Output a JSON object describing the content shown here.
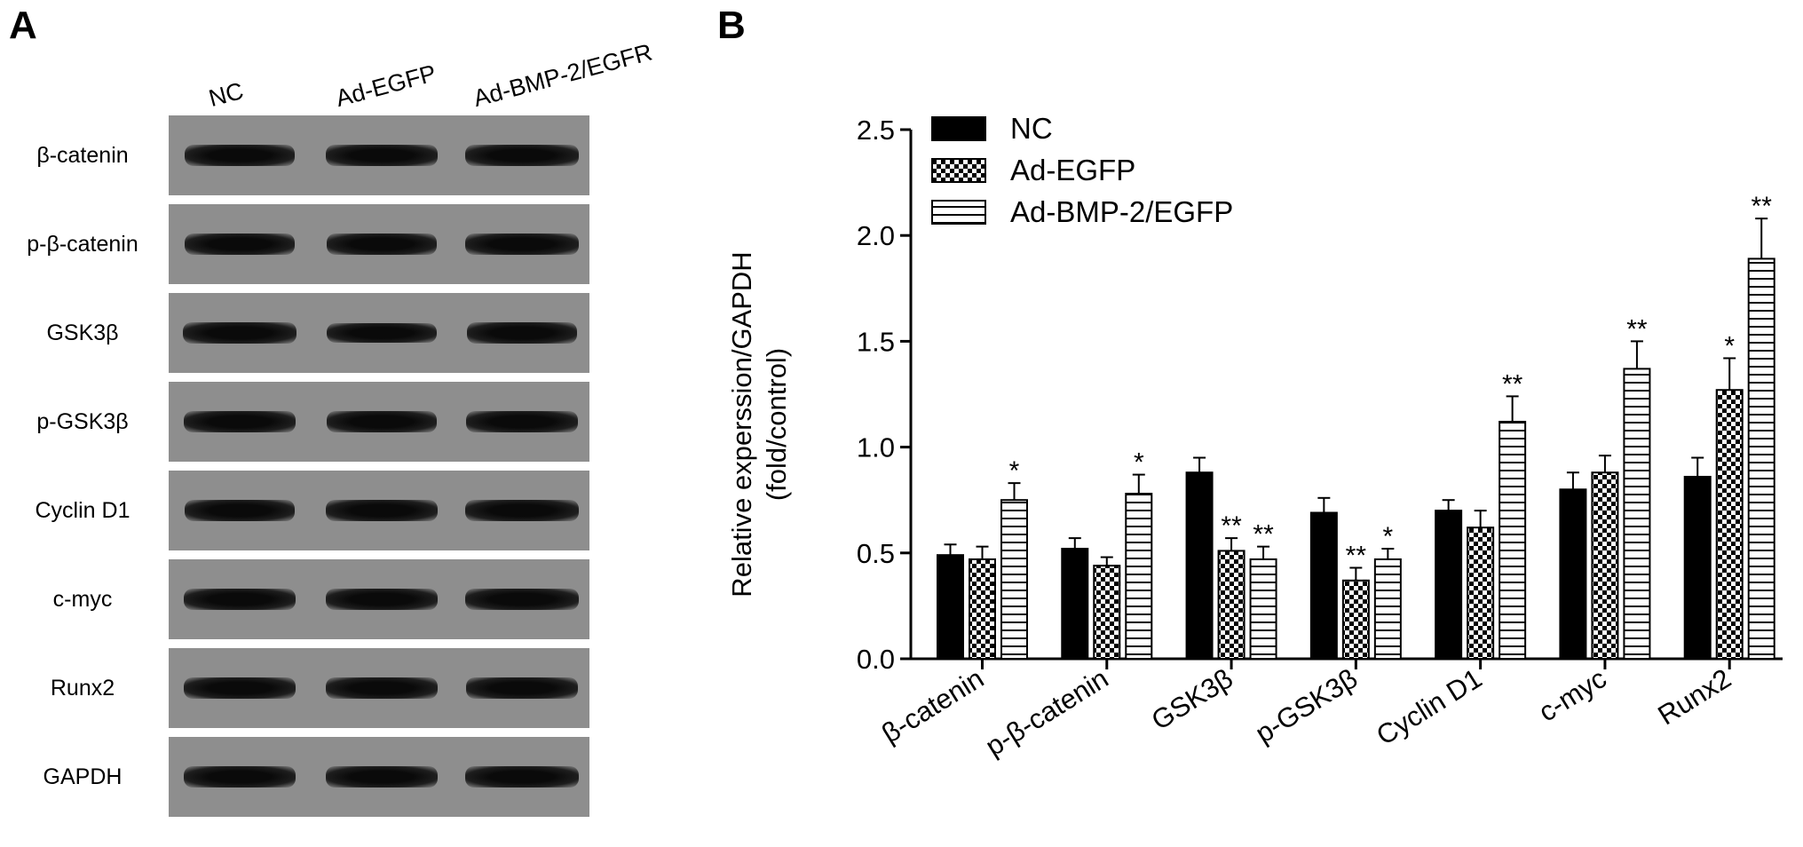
{
  "panel_a": {
    "letter": "A",
    "lanes": [
      "NC",
      "Ad-EGFP",
      "Ad-BMP-2/EGFR"
    ],
    "rows": [
      {
        "label": "β-catenin",
        "bands": [
          0.9,
          0.92,
          1.0
        ]
      },
      {
        "label": "p-β-catenin",
        "bands": [
          0.88,
          0.9,
          1.0
        ]
      },
      {
        "label": "GSK3β",
        "bands": [
          1.0,
          0.85,
          0.88
        ]
      },
      {
        "label": "p-GSK3β",
        "bands": [
          0.95,
          0.88,
          0.92
        ]
      },
      {
        "label": "Cyclin D1",
        "bands": [
          0.9,
          0.92,
          1.0
        ]
      },
      {
        "label": "c-myc",
        "bands": [
          0.92,
          0.92,
          1.0
        ]
      },
      {
        "label": "Runx2",
        "bands": [
          0.92,
          0.92,
          0.95
        ]
      },
      {
        "label": "GAPDH",
        "bands": [
          0.95,
          0.95,
          1.0
        ]
      }
    ],
    "colors": {
      "membrane": "#8e8e8e",
      "band": "#0a0a0a"
    }
  },
  "panel_b": {
    "letter": "B"
  },
  "chart_data": {
    "type": "bar",
    "title": "",
    "ylabel_line1": "Relative experssion/GAPDH",
    "ylabel_line2": "(fold/control)",
    "xlabel": "",
    "ylim": [
      0,
      2.5
    ],
    "yticks": [
      "0.0",
      "0.5",
      "1.0",
      "1.5",
      "2.0",
      "2.5"
    ],
    "ytick_values": [
      0,
      0.5,
      1.0,
      1.5,
      2.0,
      2.5
    ],
    "categories": [
      "β-catenin",
      "p-β-catenin",
      "GSK3β",
      "p-GSK3β",
      "Cyclin D1",
      "c-myc",
      "Runx2"
    ],
    "legend_position": "top-left",
    "grid": false,
    "series": [
      {
        "name": "NC",
        "pattern": "solid-black",
        "values": [
          0.49,
          0.52,
          0.88,
          0.69,
          0.7,
          0.8,
          0.86
        ],
        "errors": [
          0.05,
          0.05,
          0.07,
          0.07,
          0.05,
          0.08,
          0.09
        ],
        "significance": [
          "",
          "",
          "",
          "",
          "",
          "",
          ""
        ]
      },
      {
        "name": "Ad-EGFP",
        "pattern": "checkerboard",
        "values": [
          0.47,
          0.44,
          0.51,
          0.37,
          0.62,
          0.88,
          1.27
        ],
        "errors": [
          0.06,
          0.04,
          0.06,
          0.06,
          0.08,
          0.08,
          0.15
        ],
        "significance": [
          "",
          "",
          "**",
          "**",
          "",
          "",
          "*"
        ]
      },
      {
        "name": "Ad-BMP-2/EGFP",
        "pattern": "horizontal-stripes",
        "values": [
          0.75,
          0.78,
          0.47,
          0.47,
          1.12,
          1.37,
          1.89
        ],
        "errors": [
          0.08,
          0.09,
          0.06,
          0.05,
          0.12,
          0.13,
          0.19
        ],
        "significance": [
          "*",
          "*",
          "**",
          "*",
          "**",
          "**",
          "**"
        ]
      }
    ]
  }
}
